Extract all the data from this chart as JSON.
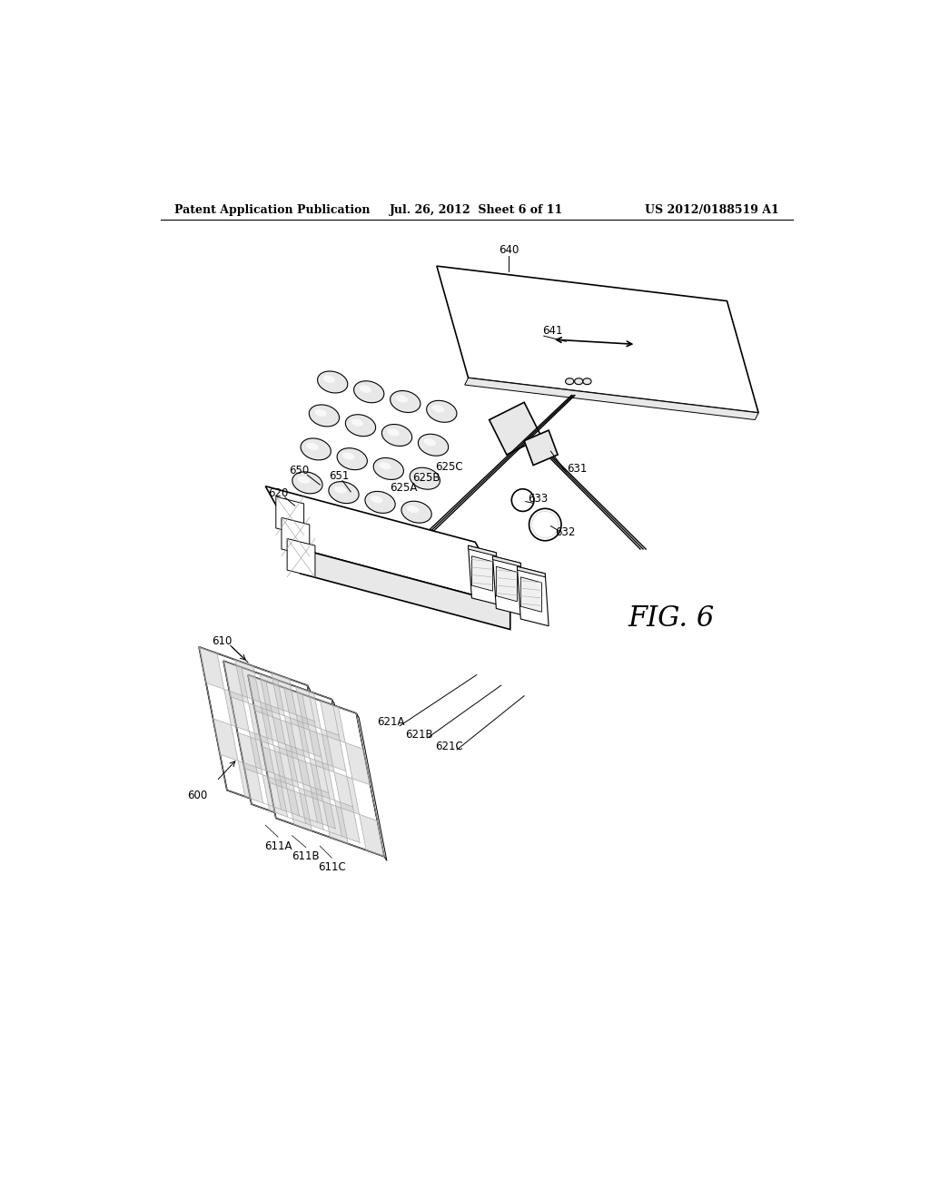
{
  "background_color": "#ffffff",
  "header_left": "Patent Application Publication",
  "header_center": "Jul. 26, 2012  Sheet 6 of 11",
  "header_right": "US 2012/0188519 A1",
  "fig_label": "FIG. 6"
}
